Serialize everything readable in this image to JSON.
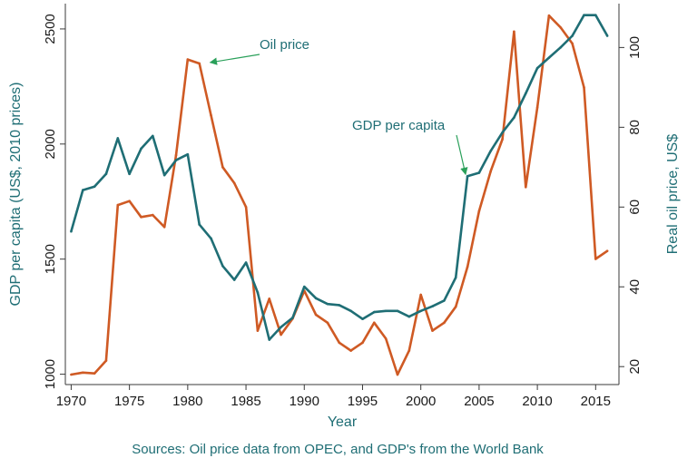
{
  "chart_data": {
    "type": "line",
    "title": "",
    "xlabel": "Year",
    "ylabel_left": "GDP per capita (US$, 2010 prices)",
    "ylabel_right": "Real oil price, US$",
    "xlim": [
      1969.5,
      2017
    ],
    "ylim_left": [
      955,
      2610
    ],
    "ylim_right": [
      15.5,
      111
    ],
    "x_ticks": [
      1970,
      1975,
      1980,
      1985,
      1990,
      1995,
      2000,
      2005,
      2010,
      2015
    ],
    "y_ticks_left": [
      1000,
      1500,
      2000,
      2500
    ],
    "y_ticks_right": [
      20,
      40,
      60,
      80,
      100
    ],
    "grid": false,
    "colors": {
      "gdp": "#1f6e75",
      "oil": "#cf5a24",
      "axis": "#3a3a3a",
      "text": "#1a1a1a"
    },
    "series": [
      {
        "name": "GDP per capita",
        "axis": "left",
        "x": [
          1970,
          1971,
          1972,
          1973,
          1974,
          1975,
          1976,
          1977,
          1978,
          1979,
          1980,
          1981,
          1982,
          1983,
          1984,
          1985,
          1986,
          1987,
          1988,
          1989,
          1990,
          1991,
          1992,
          1993,
          1994,
          1995,
          1996,
          1997,
          1998,
          1999,
          2000,
          2001,
          2002,
          2003,
          2004,
          2005,
          2006,
          2007,
          2008,
          2009,
          2010,
          2011,
          2012,
          2013,
          2014,
          2015,
          2016
        ],
        "values": [
          1620,
          1800,
          1815,
          1870,
          2025,
          1870,
          1980,
          2035,
          1865,
          1930,
          1955,
          1650,
          1590,
          1470,
          1410,
          1485,
          1355,
          1150,
          1205,
          1245,
          1380,
          1330,
          1305,
          1300,
          1275,
          1240,
          1270,
          1275,
          1275,
          1250,
          1275,
          1295,
          1320,
          1420,
          1860,
          1875,
          1970,
          2050,
          2115,
          2220,
          2330,
          2375,
          2420,
          2470,
          2560,
          2560,
          2470
        ]
      },
      {
        "name": "Oil price",
        "axis": "right",
        "x": [
          1970,
          1971,
          1972,
          1973,
          1974,
          1975,
          1976,
          1977,
          1978,
          1979,
          1980,
          1981,
          1982,
          1983,
          1984,
          1985,
          1986,
          1987,
          1988,
          1989,
          1990,
          1991,
          1992,
          1993,
          1994,
          1995,
          1996,
          1997,
          1998,
          1999,
          2000,
          2001,
          2002,
          2003,
          2004,
          2005,
          2006,
          2007,
          2008,
          2009,
          2010,
          2011,
          2012,
          2013,
          2014,
          2015,
          2016
        ],
        "values": [
          18,
          18.5,
          18.3,
          21.5,
          60.5,
          61.5,
          57.5,
          58,
          55,
          73,
          97,
          96,
          83,
          70,
          66,
          60,
          29,
          37,
          28,
          32,
          39,
          33,
          31,
          26,
          24,
          26,
          31,
          27,
          18,
          24,
          38,
          29,
          31,
          35,
          45,
          59,
          69,
          77,
          104,
          65,
          85,
          108,
          105,
          101,
          90,
          47,
          49
        ]
      }
    ],
    "annotations": [
      {
        "text": "Oil  price",
        "target_year": 1982,
        "target_value": 2370,
        "target_axis": "left"
      },
      {
        "text": "GDP per capita",
        "target_year": 2004,
        "target_value": 1860,
        "target_axis": "left"
      }
    ],
    "source_note": "Sources: Oil price data from OPEC, and GDP's from the World Bank"
  }
}
